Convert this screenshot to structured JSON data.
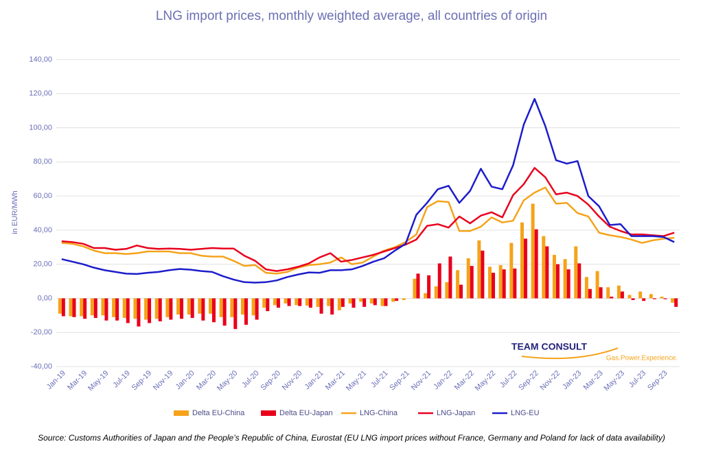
{
  "chart_data": {
    "type": "bar",
    "title": "LNG import prices, monthly weighted average, all countries of origin",
    "y_label": "in EUR/MWh",
    "source": "Source:  Customs Authorities of Japan and the People’s Republic of China, Eurostat (EU LNG import prices without France, Germany and Poland for lack of data availability)",
    "logo": {
      "name": "TEAM CONSULT",
      "tagline": "Gas.Power.Experience."
    },
    "grid": true,
    "ylim": [
      -40,
      140
    ],
    "yticks": [
      {
        "value": -40,
        "label": "-40,00"
      },
      {
        "value": -20,
        "label": "-20,00"
      },
      {
        "value": 0,
        "label": "0,00"
      },
      {
        "value": 20,
        "label": "20,00"
      },
      {
        "value": 40,
        "label": "40,00"
      },
      {
        "value": 60,
        "label": "60,00"
      },
      {
        "value": 80,
        "label": "80,00"
      },
      {
        "value": 100,
        "label": "100,00"
      },
      {
        "value": 120,
        "label": "120,00"
      },
      {
        "value": 140,
        "label": "140,00"
      }
    ],
    "categories": [
      "Jan-19",
      null,
      "Mar-19",
      null,
      "May-19",
      null,
      "Jul-19",
      null,
      "Sep-19",
      null,
      "Nov-19",
      null,
      "Jan-20",
      null,
      "Mar-20",
      null,
      "May-20",
      null,
      "Jul-20",
      null,
      "Sep-20",
      null,
      "Nov-20",
      null,
      "Jan-21",
      null,
      "Mar-21",
      null,
      "May-21",
      null,
      "Jul-21",
      null,
      "Sep-21",
      null,
      "Nov-21",
      null,
      "Jan-22",
      null,
      "Mar-22",
      null,
      "May-22",
      null,
      "Jul-22",
      null,
      "Sep-22",
      null,
      "Nov-22",
      null,
      "Jan-23",
      null,
      "Mar-23",
      null,
      "May-23",
      null,
      "Jul-23",
      null,
      "Sep-23",
      null
    ],
    "series": [
      {
        "name": "Delta EU-China",
        "type": "bar",
        "color": "#f5a31a",
        "values": [
          -9,
          -10.5,
          -10.5,
          -10,
          -10,
          -11,
          -11.5,
          -12,
          -12.5,
          -12,
          -11,
          -9.5,
          -9.5,
          -9,
          -9,
          -11,
          -11,
          -9.5,
          -10,
          -5.5,
          -4,
          -3,
          -4,
          -4.3,
          -5,
          -4.5,
          -7,
          -3,
          -2,
          -3,
          -4.5,
          -2,
          -1,
          11.5,
          3,
          7,
          9.5,
          16.5,
          23.5,
          34,
          18.5,
          19.5,
          32.5,
          44.5,
          55.5,
          36.5,
          25.5,
          23,
          30.5,
          12.5,
          16,
          6.5,
          7.5,
          2,
          4,
          2.5,
          1,
          -2.5
        ]
      },
      {
        "name": "Delta EU-Japan",
        "type": "bar",
        "color": "#e8001c",
        "values": [
          -10.5,
          -11,
          -12,
          -11.5,
          -13,
          -13,
          -14.5,
          -16.5,
          -14.5,
          -13.5,
          -12.5,
          -12,
          -11.5,
          -13,
          -14,
          -16,
          -18,
          -15.5,
          -12.5,
          -7.5,
          -5.5,
          -4.5,
          -4.5,
          -5.5,
          -9,
          -9.5,
          -5,
          -5.5,
          -5,
          -4,
          -4.5,
          -1.5,
          0,
          14.5,
          13.5,
          20.5,
          24.5,
          8,
          19,
          28,
          15,
          17,
          17.5,
          35,
          40.5,
          30.5,
          20,
          17,
          20.5,
          5.5,
          6.5,
          1,
          4,
          -1,
          -1.5,
          -0.5,
          -0.5,
          -5
        ]
      },
      {
        "name": "LNG-China",
        "type": "line",
        "color": "#f5a31a",
        "values": [
          32.5,
          32,
          30.5,
          28,
          26.5,
          26.5,
          26,
          26.5,
          27.5,
          27.5,
          27.5,
          26.5,
          26.5,
          25,
          24.5,
          24.5,
          22,
          19,
          19.5,
          15,
          14.5,
          15.5,
          18,
          19.5,
          20,
          21,
          24,
          20,
          21,
          24.5,
          28,
          30,
          33,
          37.5,
          53.5,
          57,
          56.5,
          39.5,
          39.5,
          42,
          47.5,
          44.5,
          45.5,
          57.5,
          62,
          65,
          55.5,
          56,
          50,
          48,
          38.5,
          37,
          36,
          34.5,
          32.5,
          34,
          35,
          35.5
        ]
      },
      {
        "name": "LNG-Japan",
        "type": "line",
        "color": "#e8001c",
        "values": [
          33.5,
          33,
          32,
          29.5,
          29.5,
          28.5,
          29,
          31,
          29.5,
          29,
          29.2,
          29,
          28.5,
          29,
          29.5,
          29.2,
          29.2,
          25,
          22,
          17,
          16,
          17,
          18.5,
          20.5,
          24,
          26.5,
          21.5,
          22.5,
          24,
          25.5,
          27.5,
          29.5,
          31.5,
          34.5,
          42.5,
          43.5,
          41.5,
          48,
          44,
          48.5,
          50.5,
          47.5,
          60.5,
          67,
          76.5,
          71,
          61,
          62,
          60,
          55,
          48,
          42,
          39.5,
          37.5,
          37.5,
          37,
          36.5,
          38.5
        ]
      },
      {
        "name": "LNG-EU",
        "type": "line",
        "color": "#1c1ccc",
        "values": [
          23,
          21.5,
          20,
          18,
          16.5,
          15.5,
          14.5,
          14.3,
          15,
          15.5,
          16.5,
          17.2,
          16.8,
          16,
          15.5,
          13,
          11,
          9.5,
          9.2,
          9.5,
          10.5,
          12.5,
          14,
          15.2,
          15,
          16.5,
          16.5,
          17,
          19,
          21.5,
          23.5,
          28,
          32,
          49,
          56,
          64,
          66,
          56,
          63,
          76,
          65.5,
          64,
          78,
          102,
          117,
          101,
          81,
          79,
          80.5,
          60,
          54,
          43,
          43.5,
          36.5,
          36.5,
          36.5,
          36,
          33
        ]
      }
    ]
  }
}
